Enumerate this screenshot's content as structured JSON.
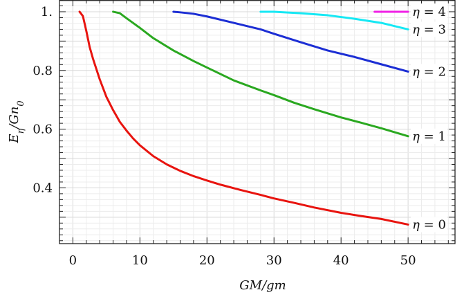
{
  "chart_data": {
    "type": "line",
    "xlabel": "GM/gm",
    "ylabel": "E_η/Gn_0",
    "xlim": [
      -2,
      57
    ],
    "ylim": [
      0.21,
      1.04
    ],
    "x_ticks": [
      0,
      10,
      20,
      30,
      40,
      50
    ],
    "x_tick_labels": [
      "0",
      "10",
      "20",
      "30",
      "40",
      "50"
    ],
    "y_ticks": [
      0.4,
      0.6,
      0.8,
      1.0
    ],
    "y_tick_labels": [
      "0.4",
      "0.6",
      "0.8",
      "1."
    ],
    "grid": true,
    "legend": "labels at right end of each line",
    "series": [
      {
        "name": "η = 0",
        "color": "#e8140f",
        "points": [
          [
            1,
            1.0
          ],
          [
            1.5,
            0.985
          ],
          [
            2,
            0.935
          ],
          [
            2.5,
            0.88
          ],
          [
            3,
            0.84
          ],
          [
            4,
            0.77
          ],
          [
            5,
            0.71
          ],
          [
            6,
            0.665
          ],
          [
            7,
            0.625
          ],
          [
            8,
            0.595
          ],
          [
            9,
            0.568
          ],
          [
            10,
            0.545
          ],
          [
            12,
            0.508
          ],
          [
            14,
            0.48
          ],
          [
            16,
            0.458
          ],
          [
            18,
            0.44
          ],
          [
            20,
            0.425
          ],
          [
            22,
            0.411
          ],
          [
            25,
            0.393
          ],
          [
            28,
            0.376
          ],
          [
            30,
            0.364
          ],
          [
            33,
            0.349
          ],
          [
            36,
            0.333
          ],
          [
            40,
            0.315
          ],
          [
            43,
            0.304
          ],
          [
            46,
            0.294
          ],
          [
            50,
            0.275
          ]
        ]
      },
      {
        "name": "η = 1",
        "color": "#2aa820",
        "points": [
          [
            6,
            1.0
          ],
          [
            7,
            0.995
          ],
          [
            8,
            0.978
          ],
          [
            10,
            0.945
          ],
          [
            12,
            0.91
          ],
          [
            15,
            0.868
          ],
          [
            18,
            0.832
          ],
          [
            20,
            0.81
          ],
          [
            24,
            0.766
          ],
          [
            28,
            0.732
          ],
          [
            30,
            0.716
          ],
          [
            33,
            0.69
          ],
          [
            36,
            0.668
          ],
          [
            40,
            0.64
          ],
          [
            43,
            0.622
          ],
          [
            46,
            0.603
          ],
          [
            50,
            0.576
          ]
        ]
      },
      {
        "name": "η = 2",
        "color": "#1c2ed4",
        "points": [
          [
            15,
            1.0
          ],
          [
            16,
            0.998
          ],
          [
            18,
            0.993
          ],
          [
            20,
            0.984
          ],
          [
            24,
            0.962
          ],
          [
            28,
            0.94
          ],
          [
            30,
            0.925
          ],
          [
            34,
            0.896
          ],
          [
            38,
            0.868
          ],
          [
            42,
            0.846
          ],
          [
            46,
            0.821
          ],
          [
            50,
            0.796
          ]
        ]
      },
      {
        "name": "η = 3",
        "color": "#16e8f4",
        "points": [
          [
            28,
            1.0
          ],
          [
            30,
            1.0
          ],
          [
            34,
            0.995
          ],
          [
            38,
            0.988
          ],
          [
            42,
            0.976
          ],
          [
            46,
            0.962
          ],
          [
            50,
            0.94
          ]
        ]
      },
      {
        "name": "η = 4",
        "color": "#f020e6",
        "points": [
          [
            45,
            1.0
          ],
          [
            50,
            1.0
          ]
        ]
      }
    ]
  }
}
